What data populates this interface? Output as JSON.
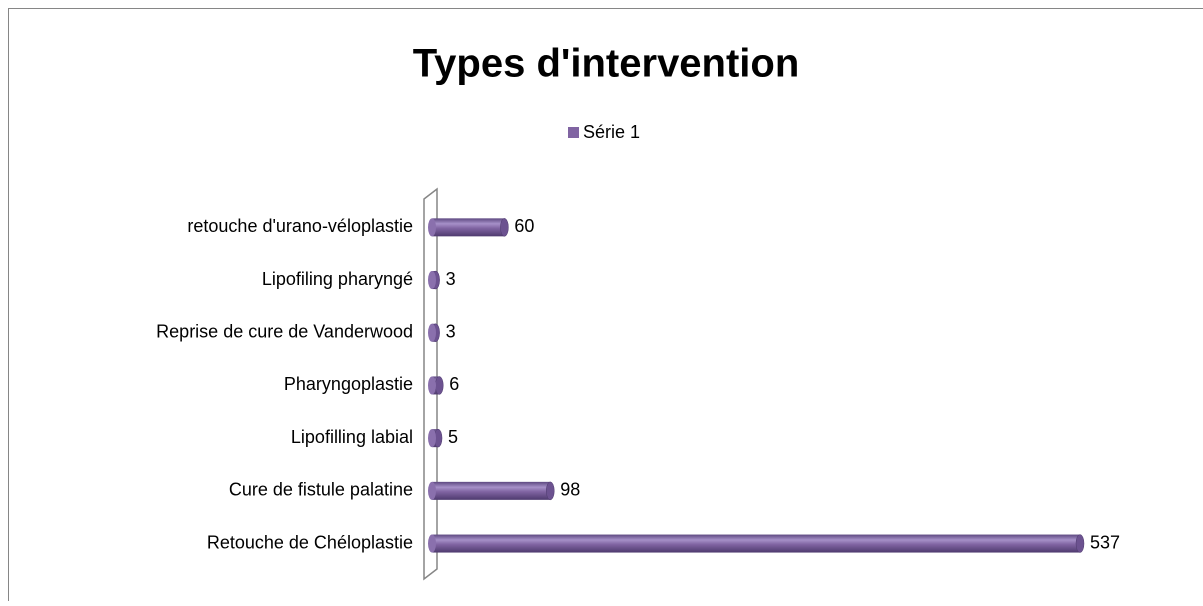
{
  "chart_data": {
    "type": "bar",
    "orientation": "horizontal",
    "title": "Types d'intervention",
    "categories": [
      "retouche d'urano-véloplastie",
      "Lipofiling pharyngé",
      "Reprise de cure de Vanderwood",
      "Pharyngoplastie",
      "Lipofilling labial",
      "Cure de fistule palatine",
      "Retouche de Chéloplastie"
    ],
    "series": [
      {
        "name": "Série 1",
        "color": "#8064a2",
        "values": [
          60,
          3,
          3,
          6,
          5,
          98,
          537
        ]
      }
    ],
    "legend": "top",
    "grid": false
  }
}
